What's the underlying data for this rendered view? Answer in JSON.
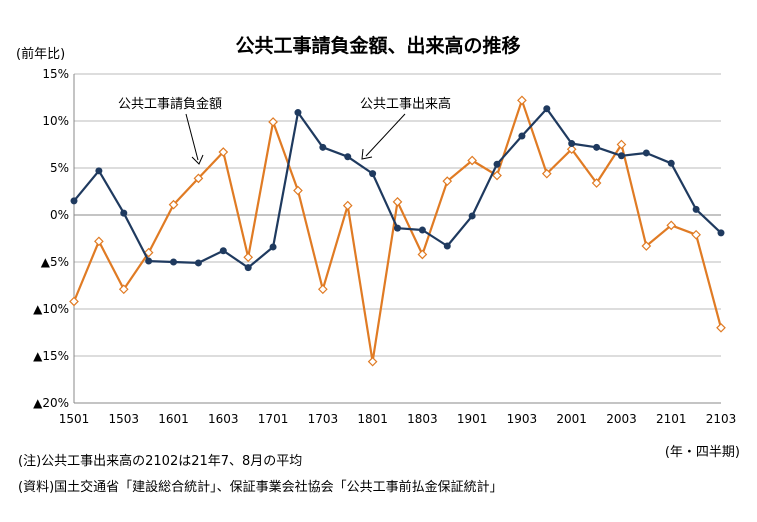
{
  "chart_data": {
    "type": "line",
    "title": "公共工事請負金額、出来高の推移",
    "ylabel": "(前年比)",
    "xlabel": "(年・四半期)",
    "ylim": [
      -20,
      15
    ],
    "y_ticks": [
      15,
      10,
      5,
      0,
      -5,
      -10,
      -15,
      -20
    ],
    "y_tick_labels": [
      "15%",
      "10%",
      "5%",
      "0%",
      "▲5%",
      "▲10%",
      "▲15%",
      "▲20%"
    ],
    "x": [
      "1501",
      "1502",
      "1503",
      "1504",
      "1601",
      "1602",
      "1603",
      "1604",
      "1701",
      "1702",
      "1703",
      "1704",
      "1801",
      "1802",
      "1803",
      "1804",
      "1901",
      "1902",
      "1903",
      "1904",
      "2001",
      "2002",
      "2003",
      "2004",
      "2101",
      "2102",
      "2103"
    ],
    "x_tick_labels": [
      "1501",
      "1503",
      "1601",
      "1603",
      "1701",
      "1703",
      "1801",
      "1803",
      "1901",
      "1903",
      "2001",
      "2003",
      "2101",
      "2103"
    ],
    "grid": true,
    "series": [
      {
        "name": "公共工事請負金額",
        "color": "#E07B24",
        "marker": "diamond-open",
        "values": [
          -9.2,
          -2.8,
          -7.9,
          -4.0,
          1.1,
          3.9,
          6.7,
          -4.5,
          9.9,
          2.6,
          -7.9,
          1.0,
          -15.6,
          1.4,
          -4.2,
          3.6,
          5.8,
          4.2,
          12.2,
          4.4,
          7.0,
          3.4,
          7.5,
          -3.3,
          -1.1,
          -2.1,
          -12.0
        ]
      },
      {
        "name": "公共工事出来高",
        "color": "#1F3A5F",
        "marker": "circle-filled",
        "values": [
          1.5,
          4.7,
          0.2,
          -4.9,
          -5.0,
          -5.1,
          -3.8,
          -5.6,
          -3.4,
          10.9,
          7.2,
          6.2,
          4.4,
          -1.4,
          -1.6,
          -3.3,
          -0.1,
          5.4,
          8.4,
          11.3,
          7.6,
          7.2,
          6.3,
          6.6,
          5.5,
          0.6,
          -1.9
        ]
      }
    ],
    "annotations": [
      "公共工事請負金額",
      "公共工事出来高"
    ]
  },
  "notes": [
    "(注)公共工事出来高の2102は21年7、8月の平均",
    "(資料)国土交通省「建設総合統計」、保証事業会社協会「公共工事前払金保証統計」"
  ]
}
